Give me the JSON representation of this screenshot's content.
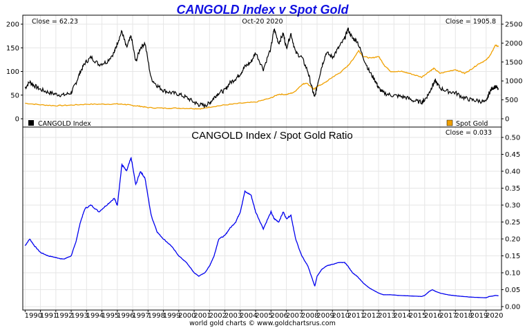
{
  "chart_data": [
    {
      "type": "line",
      "title": "CANGOLD Index v Spot Gold",
      "date_label": "Oct-20  2020",
      "close_left": "Close = 62.23",
      "close_right": "Close = 1905.8",
      "left_axis_ticks": [
        "200",
        "150",
        "100",
        "50",
        "0"
      ],
      "right_axis_ticks": [
        "2500",
        "2000",
        "1500",
        "1000",
        "500",
        "0"
      ],
      "left_ylim": [
        -2,
        200
      ],
      "right_ylim": [
        -25,
        2500
      ],
      "legend": {
        "left": "CANGOLD Index",
        "right": "Spot Gold"
      },
      "series": [
        {
          "name": "CANGOLD Index",
          "color": "#000000",
          "axis": "left",
          "x": [
            1990.0,
            1990.3,
            1990.6,
            1991.0,
            1991.5,
            1992.0,
            1992.5,
            1993.0,
            1993.3,
            1993.6,
            1993.9,
            1994.3,
            1994.8,
            1995.3,
            1995.8,
            1996.0,
            1996.3,
            1996.6,
            1996.9,
            1997.2,
            1997.5,
            1997.8,
            1998.2,
            1998.6,
            1999.0,
            1999.5,
            2000.0,
            2000.5,
            2001.0,
            2001.3,
            2001.7,
            2002.0,
            2002.3,
            2002.6,
            2003.0,
            2003.3,
            2003.7,
            2004.0,
            2004.3,
            2004.7,
            2005.0,
            2005.5,
            2006.0,
            2006.2,
            2006.5,
            2006.8,
            2007.0,
            2007.3,
            2007.6,
            2008.0,
            2008.4,
            2008.7,
            2008.85,
            2009.0,
            2009.3,
            2009.6,
            2010.0,
            2010.4,
            2010.8,
            2011.0,
            2011.3,
            2011.6,
            2012.0,
            2012.4,
            2012.8,
            2013.0,
            2013.3,
            2013.8,
            2014.3,
            2014.8,
            2015.3,
            2015.8,
            2016.0,
            2016.3,
            2016.5,
            2016.7,
            2017.0,
            2017.5,
            2018.0,
            2018.5,
            2019.0,
            2019.5,
            2020.0,
            2020.2,
            2020.4,
            2020.6,
            2020.8
          ],
          "values": [
            65,
            78,
            70,
            62,
            56,
            52,
            50,
            55,
            75,
            100,
            118,
            130,
            115,
            120,
            140,
            160,
            185,
            150,
            175,
            120,
            150,
            160,
            85,
            70,
            60,
            55,
            52,
            45,
            35,
            30,
            28,
            33,
            45,
            55,
            60,
            75,
            85,
            95,
            110,
            120,
            140,
            105,
            150,
            190,
            160,
            180,
            150,
            180,
            140,
            130,
            100,
            60,
            45,
            70,
            110,
            140,
            130,
            150,
            170,
            190,
            170,
            165,
            130,
            100,
            80,
            65,
            55,
            50,
            48,
            45,
            38,
            35,
            40,
            55,
            70,
            80,
            65,
            58,
            55,
            45,
            40,
            38,
            35,
            55,
            65,
            68,
            62
          ]
        },
        {
          "name": "Spot Gold",
          "color": "#f0a000",
          "axis": "right",
          "x": [
            1990.0,
            1991.0,
            1992.0,
            1993.0,
            1994.0,
            1995.0,
            1996.0,
            1996.5,
            1997.0,
            1997.5,
            1998.0,
            1999.0,
            2000.0,
            2001.0,
            2001.5,
            2002.0,
            2003.0,
            2004.0,
            2005.0,
            2006.0,
            2006.5,
            2007.0,
            2007.5,
            2008.0,
            2008.3,
            2008.8,
            2009.0,
            2009.5,
            2010.0,
            2010.5,
            2011.0,
            2011.3,
            2011.7,
            2012.0,
            2012.5,
            2013.0,
            2013.4,
            2013.8,
            2014.5,
            2015.0,
            2015.8,
            2016.3,
            2016.6,
            2017.0,
            2018.0,
            2018.6,
            2019.0,
            2019.5,
            2020.0,
            2020.3,
            2020.6,
            2020.8
          ],
          "values": [
            410,
            370,
            345,
            360,
            385,
            385,
            390,
            380,
            350,
            330,
            295,
            280,
            280,
            270,
            265,
            310,
            365,
            410,
            440,
            550,
            650,
            640,
            700,
            900,
            950,
            780,
            850,
            950,
            1100,
            1220,
            1400,
            1550,
            1800,
            1650,
            1600,
            1650,
            1400,
            1250,
            1250,
            1200,
            1100,
            1250,
            1330,
            1200,
            1300,
            1200,
            1300,
            1450,
            1550,
            1700,
            1950,
            1906
          ]
        }
      ]
    },
    {
      "type": "line",
      "title": "CANGOLD Index  /  Spot Gold Ratio",
      "close_label": "Close = 0.033",
      "y_axis_ticks": [
        "0.50",
        "0.45",
        "0.40",
        "0.35",
        "0.30",
        "0.25",
        "0.20",
        "0.15",
        "0.10",
        "0.05",
        "0.00"
      ],
      "ylim": [
        0,
        0.5
      ],
      "xlim": [
        1989.85,
        2021.0
      ],
      "x_tick_labels": [
        "1990",
        "1991",
        "1992",
        "1993",
        "1994",
        "1995",
        "1996",
        "1997",
        "1998",
        "1999",
        "2000",
        "2001",
        "2002",
        "2003",
        "2004",
        "2005",
        "2006",
        "2007",
        "2008",
        "2009",
        "2010",
        "2011",
        "2012",
        "2013",
        "2014",
        "2015",
        "2016",
        "2017",
        "2018",
        "2019",
        "2020"
      ],
      "series": [
        {
          "name": "CANGOLD / Gold Ratio",
          "color": "#0000ee",
          "x": [
            1990.0,
            1990.3,
            1990.6,
            1991.0,
            1991.5,
            1992.0,
            1992.5,
            1993.0,
            1993.3,
            1993.6,
            1993.9,
            1994.3,
            1994.8,
            1995.3,
            1995.8,
            1996.0,
            1996.3,
            1996.6,
            1996.9,
            1997.2,
            1997.5,
            1997.8,
            1998.2,
            1998.6,
            1999.0,
            1999.5,
            2000.0,
            2000.5,
            2001.0,
            2001.3,
            2001.7,
            2002.0,
            2002.3,
            2002.6,
            2003.0,
            2003.3,
            2003.7,
            2004.0,
            2004.3,
            2004.7,
            2005.0,
            2005.5,
            2006.0,
            2006.2,
            2006.5,
            2006.8,
            2007.0,
            2007.3,
            2007.6,
            2008.0,
            2008.4,
            2008.7,
            2008.85,
            2009.0,
            2009.3,
            2009.6,
            2010.0,
            2010.4,
            2010.8,
            2011.0,
            2011.3,
            2011.6,
            2012.0,
            2012.4,
            2012.8,
            2013.0,
            2013.3,
            2013.8,
            2014.3,
            2014.8,
            2015.3,
            2015.8,
            2016.0,
            2016.3,
            2016.5,
            2016.7,
            2017.0,
            2017.5,
            2018.0,
            2018.5,
            2019.0,
            2019.5,
            2020.0,
            2020.2,
            2020.4,
            2020.6,
            2020.8
          ],
          "values": [
            0.18,
            0.2,
            0.18,
            0.16,
            0.15,
            0.145,
            0.14,
            0.15,
            0.19,
            0.25,
            0.29,
            0.3,
            0.28,
            0.3,
            0.32,
            0.3,
            0.42,
            0.4,
            0.44,
            0.36,
            0.4,
            0.38,
            0.27,
            0.22,
            0.2,
            0.18,
            0.15,
            0.13,
            0.1,
            0.09,
            0.1,
            0.12,
            0.15,
            0.2,
            0.21,
            0.23,
            0.25,
            0.28,
            0.34,
            0.33,
            0.28,
            0.23,
            0.28,
            0.26,
            0.25,
            0.28,
            0.26,
            0.27,
            0.2,
            0.15,
            0.12,
            0.08,
            0.06,
            0.09,
            0.11,
            0.12,
            0.125,
            0.13,
            0.13,
            0.12,
            0.1,
            0.09,
            0.07,
            0.055,
            0.045,
            0.04,
            0.035,
            0.035,
            0.033,
            0.032,
            0.031,
            0.03,
            0.033,
            0.045,
            0.05,
            0.045,
            0.04,
            0.035,
            0.032,
            0.03,
            0.028,
            0.027,
            0.026,
            0.03,
            0.031,
            0.033,
            0.032
          ]
        }
      ]
    }
  ],
  "footer": "world gold charts © www.goldchartsrus.com"
}
